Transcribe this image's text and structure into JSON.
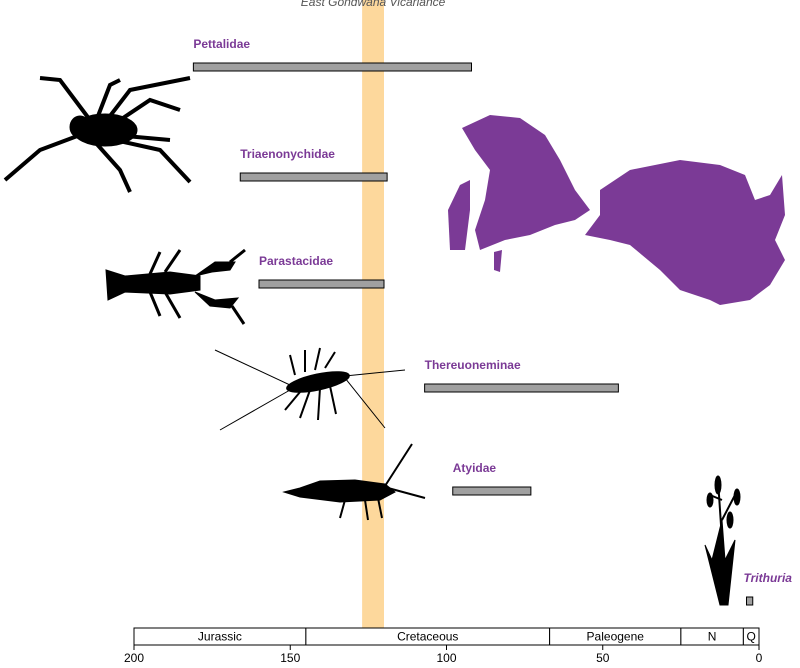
{
  "chart_data": {
    "type": "range",
    "band": {
      "label": "East Gondwana Vicariance",
      "range": [
        127,
        120
      ],
      "color": "#fdd89c"
    },
    "categories": [
      "Pettalidae",
      "Triaenonychidae",
      "Parastacidae",
      "Thereuoneminae",
      "Atyidae",
      "Trithuria"
    ],
    "starts": [
      181,
      166,
      160,
      107,
      98,
      4
    ],
    "ends": [
      92,
      119,
      120,
      45,
      73,
      2
    ],
    "italic": [
      false,
      false,
      false,
      false,
      false,
      true
    ],
    "color": "#a0a0a0",
    "label_color": "#7b3a96",
    "periods": {
      "names": [
        "Jurassic",
        "Cretaceous",
        "Paleogene",
        "N",
        "Q"
      ],
      "bounds": [
        200,
        145,
        67,
        25,
        5,
        0
      ]
    },
    "xlim": [
      200,
      0
    ],
    "xticks": [
      200,
      150,
      100,
      50,
      0
    ]
  }
}
